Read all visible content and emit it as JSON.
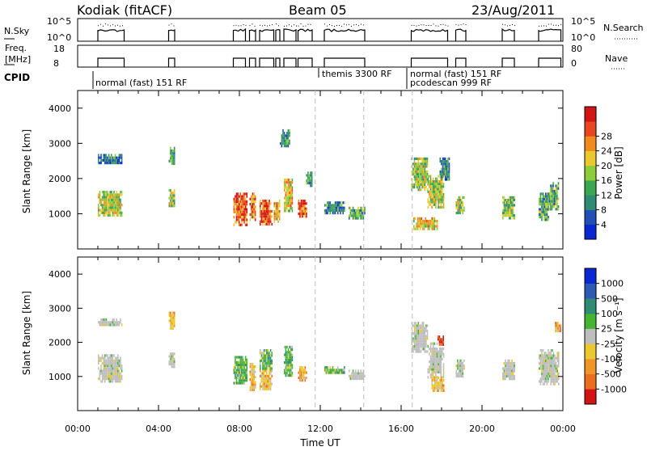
{
  "header": {
    "station": "Kodiak (fitACF)",
    "beam": "Beam 05",
    "date": "23/Aug/2011"
  },
  "labels": {
    "nsky": "N.Sky",
    "nsky_t1": "10^5",
    "nsky_t0": "10^0",
    "nsky_rt1": "10^5",
    "nsky_rt0": "10^0",
    "nsearch": "N.Search",
    "freq_line1": "Freq.",
    "freq_line2": "[MHz]",
    "freq_t18": "18",
    "freq_t8": "8",
    "nave_t80": "80",
    "nave_t0": "0",
    "nave": "Nave",
    "cpid": "CPID",
    "cpid1": "normal (fast) 151 RF",
    "cpid2": "themis 3300 RF",
    "cpid3": "normal (fast) 151 RF",
    "cpid4": "pcodescan 999 RF",
    "power_cb_label": "Power [dB]",
    "vel_cb_label": "Velocity [m s⁻¹]"
  },
  "chart_data": [
    {
      "type": "heatmap",
      "title": "",
      "ylabel": "Slant Range [km]",
      "xlabel": "",
      "ylim": [
        0,
        4500
      ],
      "yticks": [
        "1000",
        "2000",
        "3000",
        "4000"
      ],
      "xlim_hours": [
        0,
        24
      ],
      "colorbar": {
        "label": "Power [dB]",
        "ticks": [
          "4",
          "8",
          "12",
          "16",
          "20",
          "24",
          "28"
        ],
        "range": [
          0,
          32
        ],
        "colors": [
          "#0a28d2",
          "#2350b4",
          "#2d8c73",
          "#3ca650",
          "#8ccd3c",
          "#ebc82d",
          "#f08c1e",
          "#e8461e",
          "#d21414"
        ]
      },
      "blobs": [
        {
          "t0": 1.0,
          "t1": 2.2,
          "r0": 2450,
          "r1": 2700,
          "level": 0.25
        },
        {
          "t0": 1.0,
          "t1": 2.2,
          "r0": 950,
          "r1": 1650,
          "level": 0.55
        },
        {
          "t0": 4.5,
          "t1": 4.8,
          "r0": 2400,
          "r1": 2900,
          "level": 0.4
        },
        {
          "t0": 4.5,
          "t1": 4.8,
          "r0": 1200,
          "r1": 1700,
          "level": 0.5
        },
        {
          "t0": 7.7,
          "t1": 8.4,
          "r0": 700,
          "r1": 1600,
          "level": 0.8
        },
        {
          "t0": 8.5,
          "t1": 8.8,
          "r0": 800,
          "r1": 1600,
          "level": 0.75
        },
        {
          "t0": 9.0,
          "t1": 9.6,
          "r0": 700,
          "r1": 1400,
          "level": 0.85
        },
        {
          "t0": 9.7,
          "t1": 10.0,
          "r0": 800,
          "r1": 1400,
          "level": 0.7
        },
        {
          "t0": 10.2,
          "t1": 10.6,
          "r0": 1100,
          "r1": 2000,
          "level": 0.6
        },
        {
          "t0": 10.0,
          "t1": 10.5,
          "r0": 2900,
          "r1": 3400,
          "level": 0.3
        },
        {
          "t0": 10.9,
          "t1": 11.3,
          "r0": 900,
          "r1": 1400,
          "level": 0.8
        },
        {
          "t0": 11.3,
          "t1": 11.6,
          "r0": 1800,
          "r1": 2200,
          "level": 0.35
        },
        {
          "t0": 12.2,
          "t1": 13.2,
          "r0": 1050,
          "r1": 1350,
          "level": 0.3
        },
        {
          "t0": 13.4,
          "t1": 14.2,
          "r0": 900,
          "r1": 1200,
          "level": 0.4
        },
        {
          "t0": 16.5,
          "t1": 17.3,
          "r0": 1700,
          "r1": 2600,
          "level": 0.5
        },
        {
          "t0": 17.3,
          "t1": 18.1,
          "r0": 1200,
          "r1": 2100,
          "level": 0.55
        },
        {
          "t0": 16.6,
          "t1": 17.8,
          "r0": 600,
          "r1": 900,
          "level": 0.6
        },
        {
          "t0": 17.9,
          "t1": 18.4,
          "r0": 2000,
          "r1": 2600,
          "level": 0.3
        },
        {
          "t0": 18.7,
          "t1": 19.1,
          "r0": 1000,
          "r1": 1500,
          "level": 0.5
        },
        {
          "t0": 21.0,
          "t1": 21.6,
          "r0": 900,
          "r1": 1500,
          "level": 0.45
        },
        {
          "t0": 22.8,
          "t1": 23.3,
          "r0": 800,
          "r1": 1600,
          "level": 0.35
        },
        {
          "t0": 23.3,
          "t1": 23.8,
          "r0": 1100,
          "r1": 1900,
          "level": 0.4
        }
      ]
    },
    {
      "type": "heatmap",
      "title": "",
      "ylabel": "Slant Range [km]",
      "xlabel": "Time UT",
      "ylim": [
        0,
        4500
      ],
      "yticks": [
        "1000",
        "2000",
        "3000",
        "4000"
      ],
      "xticks": [
        "00:00",
        "04:00",
        "08:00",
        "12:00",
        "16:00",
        "20:00",
        "00:00"
      ],
      "xlim_hours": [
        0,
        24
      ],
      "colorbar": {
        "label": "Velocity [m s⁻¹]",
        "ticks": [
          "1000",
          "500",
          "100",
          "25",
          "-25",
          "-100",
          "-500",
          "-1000"
        ],
        "colors": [
          "#0a28d2",
          "#2d5ab4",
          "#2d8c73",
          "#46b432",
          "#bebebe",
          "#ebc82d",
          "#f09628",
          "#ea6e1e",
          "#d21414"
        ]
      },
      "blobs": [
        {
          "t0": 1.0,
          "t1": 2.2,
          "r0": 2500,
          "r1": 2700,
          "kind": "gray"
        },
        {
          "t0": 1.0,
          "t1": 2.2,
          "r0": 850,
          "r1": 1650,
          "kind": "gray"
        },
        {
          "t0": 4.5,
          "t1": 4.8,
          "r0": 2400,
          "r1": 2900,
          "kind": "orange"
        },
        {
          "t0": 4.5,
          "t1": 4.8,
          "r0": 1300,
          "r1": 1700,
          "kind": "gray"
        },
        {
          "t0": 7.7,
          "t1": 8.4,
          "r0": 800,
          "r1": 1600,
          "kind": "green"
        },
        {
          "t0": 8.5,
          "t1": 8.8,
          "r0": 600,
          "r1": 1400,
          "kind": "orange"
        },
        {
          "t0": 9.0,
          "t1": 9.6,
          "r0": 600,
          "r1": 1200,
          "kind": "orange"
        },
        {
          "t0": 9.0,
          "t1": 9.6,
          "r0": 1200,
          "r1": 1800,
          "kind": "green"
        },
        {
          "t0": 10.2,
          "t1": 10.6,
          "r0": 1000,
          "r1": 1900,
          "kind": "green"
        },
        {
          "t0": 10.9,
          "t1": 11.3,
          "r0": 900,
          "r1": 1300,
          "kind": "orange"
        },
        {
          "t0": 12.2,
          "t1": 13.2,
          "r0": 1100,
          "r1": 1300,
          "kind": "green"
        },
        {
          "t0": 13.4,
          "t1": 14.2,
          "r0": 900,
          "r1": 1200,
          "kind": "gray"
        },
        {
          "t0": 16.5,
          "t1": 17.3,
          "r0": 1700,
          "r1": 2600,
          "kind": "gray"
        },
        {
          "t0": 17.3,
          "t1": 18.1,
          "r0": 1000,
          "r1": 2000,
          "kind": "gray"
        },
        {
          "t0": 17.5,
          "t1": 18.1,
          "r0": 600,
          "r1": 1000,
          "kind": "orange"
        },
        {
          "t0": 17.8,
          "t1": 18.1,
          "r0": 1900,
          "r1": 2200,
          "kind": "red"
        },
        {
          "t0": 18.7,
          "t1": 19.1,
          "r0": 1000,
          "r1": 1500,
          "kind": "gray"
        },
        {
          "t0": 21.0,
          "t1": 21.6,
          "r0": 900,
          "r1": 1500,
          "kind": "gray"
        },
        {
          "t0": 22.8,
          "t1": 23.8,
          "r0": 800,
          "r1": 1800,
          "kind": "gray"
        },
        {
          "t0": 23.6,
          "t1": 23.9,
          "r0": 2300,
          "r1": 2600,
          "kind": "orange"
        }
      ]
    }
  ]
}
